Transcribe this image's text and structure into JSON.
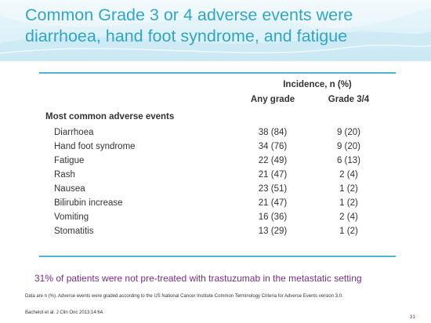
{
  "slide": {
    "title": "Common Grade 3 or 4 adverse events were diarrhoea, hand foot syndrome, and fatigue",
    "page_number": "31"
  },
  "table": {
    "header_group": "Incidence, n (%)",
    "columns": [
      "Any grade",
      "Grade 3/4"
    ],
    "section_label": "Most common adverse events",
    "rows": [
      {
        "event": "Diarrhoea",
        "any": "38 (84)",
        "g34": "9 (20)"
      },
      {
        "event": "Hand foot syndrome",
        "any": "34 (76)",
        "g34": "9 (20)"
      },
      {
        "event": "Fatigue",
        "any": "22 (49)",
        "g34": "6 (13)"
      },
      {
        "event": "Rash",
        "any": "21 (47)",
        "g34": "2 (4)"
      },
      {
        "event": "Nausea",
        "any": "23 (51)",
        "g34": "1 (2)"
      },
      {
        "event": "Bilirubin increase",
        "any": "21 (47)",
        "g34": "1 (2)"
      },
      {
        "event": "Vomiting",
        "any": "16 (36)",
        "g34": "2 (4)"
      },
      {
        "event": "Stomatitis",
        "any": "13 (29)",
        "g34": "1 (2)"
      }
    ]
  },
  "note": "31% of patients were not pre-treated with trastuzumab in the metastatic setting",
  "footnote": "Data are n (%). Adverse events were graded according to the US National Cancer Institute Common Terminology Criteria for Adverse Events version 3.0.",
  "reference": "Bachelot et al. J Clin Onc 2013;14:64.",
  "colors": {
    "title": "#2fa6c9",
    "rule": "#4fb3d3",
    "note": "#7a2a8a",
    "header_band": "#d6eef7"
  }
}
